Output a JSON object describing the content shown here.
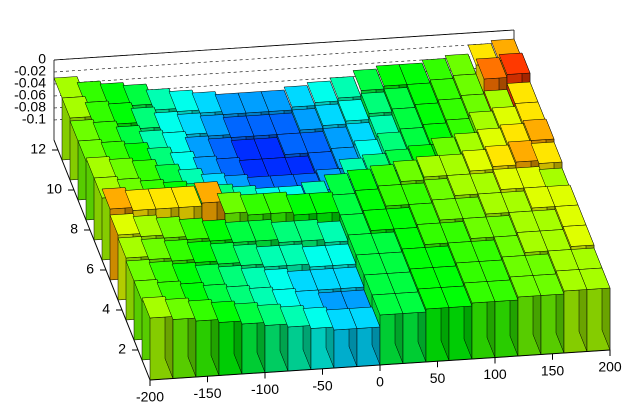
{
  "chart_data": {
    "type": "lego",
    "xlim": [
      -200,
      200
    ],
    "ylim": [
      0.5,
      12.5
    ],
    "zlim": [
      -0.1,
      0
    ],
    "xticks": [
      -200,
      -150,
      -100,
      -50,
      0,
      50,
      100,
      150,
      200
    ],
    "yticks": [
      2,
      4,
      6,
      8,
      10,
      12
    ],
    "zticks": [
      -0.1,
      -0.08,
      -0.06,
      -0.04,
      -0.02,
      0
    ],
    "grid": true,
    "z": [
      [
        -0.03,
        -0.035,
        -0.04,
        -0.045,
        -0.05,
        -0.055,
        -0.06,
        -0.065,
        -0.07,
        -0.07,
        -0.05,
        -0.05,
        -0.045,
        -0.045,
        -0.04,
        -0.04,
        -0.035,
        -0.035,
        -0.03,
        -0.03
      ],
      [
        -0.035,
        -0.04,
        -0.045,
        -0.05,
        -0.055,
        -0.06,
        -0.065,
        -0.07,
        -0.075,
        -0.075,
        -0.05,
        -0.05,
        -0.045,
        -0.045,
        -0.04,
        -0.04,
        -0.035,
        -0.035,
        -0.03,
        -0.03
      ],
      [
        -0.035,
        -0.04,
        -0.045,
        -0.05,
        -0.055,
        -0.06,
        -0.065,
        -0.07,
        -0.07,
        -0.07,
        -0.05,
        -0.05,
        -0.045,
        -0.045,
        -0.04,
        -0.04,
        -0.035,
        -0.03,
        -0.03,
        -0.025
      ],
      [
        -0.03,
        -0.035,
        -0.04,
        -0.045,
        -0.05,
        -0.055,
        -0.06,
        -0.06,
        -0.065,
        -0.065,
        -0.05,
        -0.05,
        -0.045,
        -0.04,
        -0.04,
        -0.035,
        -0.035,
        -0.03,
        -0.03,
        -0.025
      ],
      [
        -0.025,
        -0.03,
        -0.035,
        -0.04,
        -0.045,
        -0.05,
        -0.05,
        -0.055,
        -0.055,
        -0.06,
        -0.05,
        -0.045,
        -0.045,
        -0.04,
        -0.035,
        -0.035,
        -0.03,
        -0.03,
        -0.025,
        -0.025
      ],
      [
        -0.015,
        -0.02,
        -0.02,
        -0.02,
        -0.015,
        -0.035,
        -0.04,
        -0.04,
        -0.045,
        -0.045,
        -0.05,
        -0.045,
        -0.04,
        -0.04,
        -0.035,
        -0.03,
        -0.03,
        -0.025,
        -0.025,
        -0.03
      ],
      [
        -0.03,
        -0.035,
        -0.04,
        -0.045,
        -0.05,
        -0.055,
        -0.06,
        -0.065,
        -0.065,
        -0.06,
        -0.05,
        -0.045,
        -0.04,
        -0.035,
        -0.03,
        -0.03,
        -0.025,
        -0.02,
        -0.015,
        -0.02
      ],
      [
        -0.03,
        -0.035,
        -0.04,
        -0.05,
        -0.06,
        -0.07,
        -0.075,
        -0.08,
        -0.08,
        -0.08,
        -0.075,
        -0.06,
        -0.055,
        -0.05,
        -0.045,
        -0.035,
        -0.03,
        -0.025,
        -0.02,
        -0.015
      ],
      [
        -0.035,
        -0.04,
        -0.045,
        -0.055,
        -0.065,
        -0.075,
        -0.08,
        -0.085,
        -0.085,
        -0.085,
        -0.08,
        -0.075,
        -0.065,
        -0.055,
        -0.05,
        -0.045,
        -0.04,
        -0.03,
        -0.025,
        -0.02
      ],
      [
        -0.035,
        -0.04,
        -0.05,
        -0.06,
        -0.065,
        -0.075,
        -0.08,
        -0.085,
        -0.085,
        -0.08,
        -0.08,
        -0.075,
        -0.07,
        -0.06,
        -0.05,
        -0.045,
        -0.04,
        -0.035,
        -0.03,
        -0.02
      ],
      [
        -0.03,
        -0.04,
        -0.045,
        -0.055,
        -0.065,
        -0.07,
        -0.075,
        -0.08,
        -0.08,
        -0.08,
        -0.075,
        -0.07,
        -0.065,
        -0.055,
        -0.05,
        -0.045,
        -0.04,
        -0.035,
        -0.01,
        -0.005
      ],
      [
        -0.03,
        -0.04,
        -0.045,
        -0.05,
        -0.06,
        -0.065,
        -0.07,
        -0.075,
        -0.075,
        -0.075,
        -0.07,
        -0.065,
        -0.06,
        -0.05,
        -0.045,
        -0.045,
        -0.04,
        -0.035,
        -0.02,
        -0.015
      ]
    ]
  }
}
